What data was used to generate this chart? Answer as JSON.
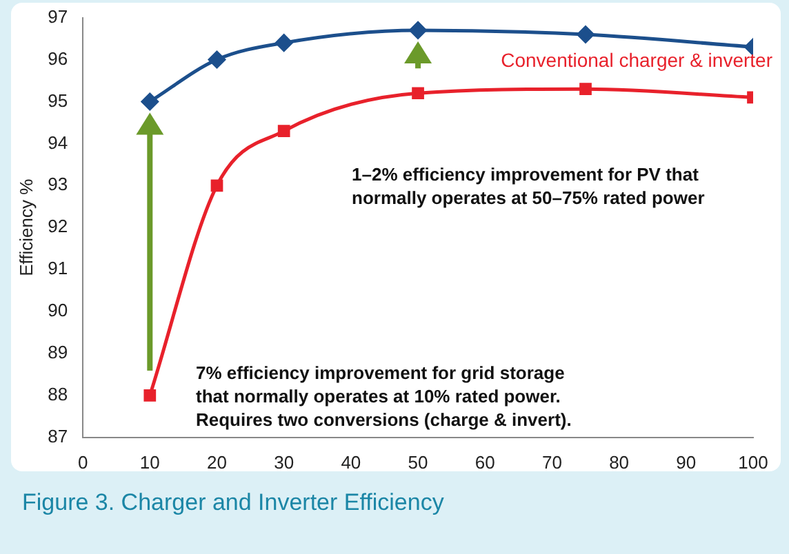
{
  "chart_data": {
    "type": "line",
    "title": "Figure 3. Charger and Inverter Efficiency",
    "ylabel": "Efficiency %",
    "x": [
      10,
      20,
      30,
      50,
      75,
      100
    ],
    "series": [
      {
        "color": "#1c4f8c",
        "marker": "diamond",
        "values": [
          95.0,
          96.0,
          96.4,
          96.7,
          96.6,
          96.3
        ]
      },
      {
        "name": "Conventional charger & inverter",
        "color": "#e8212b",
        "marker": "square",
        "values": [
          88.0,
          93.0,
          94.3,
          95.2,
          95.3,
          95.1
        ]
      }
    ],
    "xlim": [
      0,
      100
    ],
    "xticks": [
      0,
      10,
      20,
      30,
      40,
      50,
      60,
      70,
      80,
      90,
      100
    ],
    "ylim": [
      87,
      97
    ],
    "yticks": [
      87,
      88,
      89,
      90,
      91,
      92,
      93,
      94,
      95,
      96,
      97
    ],
    "grid": false,
    "legend": false,
    "annotations": [
      "1–2% efficiency improvement for PV that normally operates at 50–75% rated power",
      "7% efficiency improvement for grid storage that normally operates at 10% rated power. Requires two conversions (charge & invert)."
    ]
  }
}
